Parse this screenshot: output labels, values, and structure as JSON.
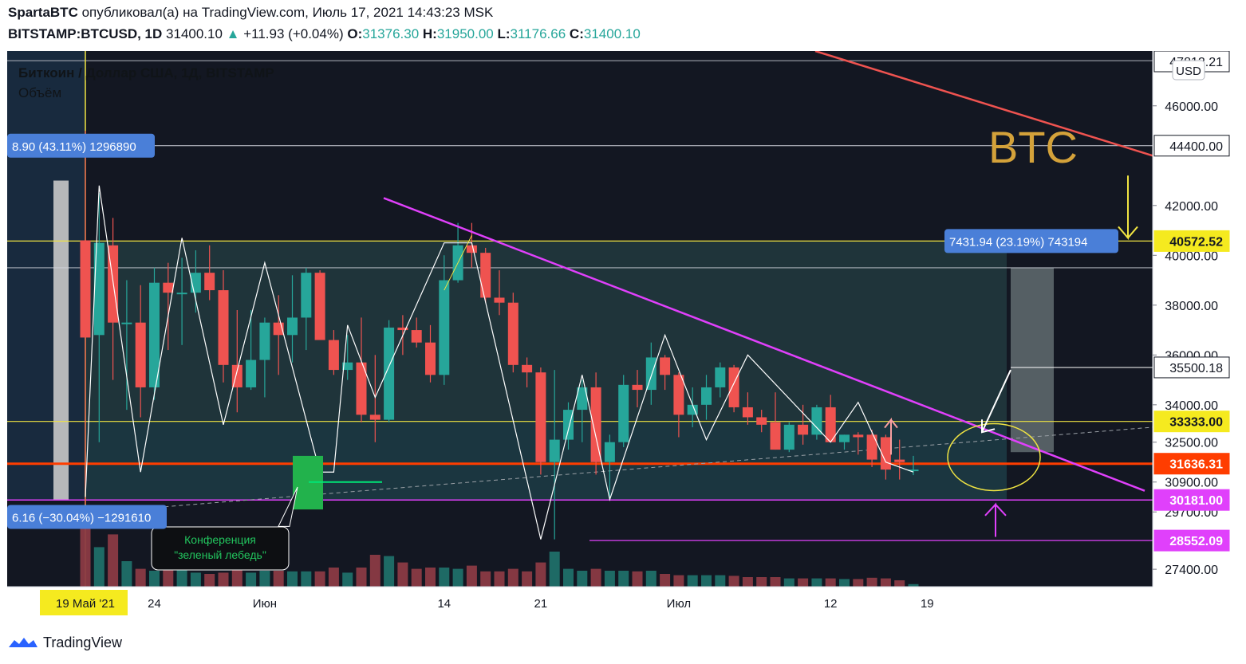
{
  "header": {
    "author": "SpartaBTC",
    "published_text": "опубликовал(а) на TradingView.com, Июль 17, 2021 14:43:23 MSK",
    "symbol": "BITSTAMP:BTCUSD, 1D",
    "last": "31400.10",
    "change": "+11.93 (+0.04%)",
    "o_label": "O:",
    "o": "31376.30",
    "h_label": "H:",
    "h": "31950.00",
    "l_label": "L:",
    "l": "31176.66",
    "c_label": "C:",
    "c": "31400.10"
  },
  "footer": {
    "brand": "TradingView"
  },
  "chart_data": {
    "type": "candlestick",
    "legend_title": "Биткоин / Доллар США, 1Д, BITSTAMP",
    "legend_volume": "Объём",
    "currency": "USD",
    "watermark": "BTC",
    "ylim": [
      26700,
      48200
    ],
    "y_ticks": [
      {
        "value": 46000,
        "label": "46000.00"
      },
      {
        "value": 42000,
        "label": "42000.00"
      },
      {
        "value": 40000,
        "label": "40000.00"
      },
      {
        "value": 38000,
        "label": "38000.00"
      },
      {
        "value": 36000,
        "label": "36000.00"
      },
      {
        "value": 34000,
        "label": "34000.00"
      },
      {
        "value": 32500,
        "label": "32500.00"
      },
      {
        "value": 30900,
        "label": "30900.00"
      },
      {
        "value": 29700,
        "label": "29700.00"
      },
      {
        "value": 27400,
        "label": "27400.00"
      }
    ],
    "x_ticks": [
      {
        "label": "19 Май '21",
        "index": 0,
        "highlight": true
      },
      {
        "label": "24",
        "index": 5
      },
      {
        "label": "Июн",
        "index": 13
      },
      {
        "label": "14",
        "index": 26
      },
      {
        "label": "21",
        "index": 33
      },
      {
        "label": "Июл",
        "index": 43
      },
      {
        "label": "12",
        "index": 54
      },
      {
        "label": "19",
        "index": 61
      }
    ],
    "candles": [
      {
        "o": 40600,
        "h": 45000,
        "l": 30000,
        "c": 36700,
        "v": 1.0
      },
      {
        "o": 36800,
        "h": 42500,
        "l": 32500,
        "c": 40500,
        "v": 0.62
      },
      {
        "o": 40400,
        "h": 41500,
        "l": 35000,
        "c": 37300,
        "v": 0.82
      },
      {
        "o": 37300,
        "h": 39000,
        "l": 33800,
        "c": 37300,
        "v": 0.4
      },
      {
        "o": 37300,
        "h": 38800,
        "l": 33500,
        "c": 34700,
        "v": 0.28
      },
      {
        "o": 34700,
        "h": 39500,
        "l": 34200,
        "c": 38900,
        "v": 0.25
      },
      {
        "o": 38900,
        "h": 39700,
        "l": 36200,
        "c": 38500,
        "v": 0.55
      },
      {
        "o": 38500,
        "h": 39900,
        "l": 36400,
        "c": 38500,
        "v": 0.28
      },
      {
        "o": 38500,
        "h": 40200,
        "l": 37700,
        "c": 39300,
        "v": 0.22
      },
      {
        "o": 39300,
        "h": 40400,
        "l": 38200,
        "c": 38600,
        "v": 0.2
      },
      {
        "o": 38600,
        "h": 39400,
        "l": 34900,
        "c": 35600,
        "v": 0.22
      },
      {
        "o": 35600,
        "h": 37800,
        "l": 33700,
        "c": 34700,
        "v": 0.28
      },
      {
        "o": 34700,
        "h": 37800,
        "l": 34600,
        "c": 35800,
        "v": 0.22
      },
      {
        "o": 35800,
        "h": 37500,
        "l": 34300,
        "c": 37300,
        "v": 0.25
      },
      {
        "o": 37300,
        "h": 38400,
        "l": 35200,
        "c": 36800,
        "v": 0.25
      },
      {
        "o": 36800,
        "h": 39200,
        "l": 35700,
        "c": 37500,
        "v": 0.24
      },
      {
        "o": 37500,
        "h": 39500,
        "l": 36200,
        "c": 39300,
        "v": 0.24
      },
      {
        "o": 39300,
        "h": 39400,
        "l": 36700,
        "c": 36600,
        "v": 0.24
      },
      {
        "o": 36600,
        "h": 37000,
        "l": 35200,
        "c": 35400,
        "v": 0.3
      },
      {
        "o": 35400,
        "h": 36800,
        "l": 35000,
        "c": 35700,
        "v": 0.22
      },
      {
        "o": 35700,
        "h": 37500,
        "l": 33300,
        "c": 33600,
        "v": 0.3
      },
      {
        "o": 33600,
        "h": 36000,
        "l": 32500,
        "c": 33400,
        "v": 0.5
      },
      {
        "o": 33400,
        "h": 37400,
        "l": 33300,
        "c": 37100,
        "v": 0.48
      },
      {
        "o": 37100,
        "h": 37600,
        "l": 36000,
        "c": 37000,
        "v": 0.38
      },
      {
        "o": 37000,
        "h": 37500,
        "l": 36300,
        "c": 36500,
        "v": 0.28
      },
      {
        "o": 36500,
        "h": 37200,
        "l": 34900,
        "c": 35200,
        "v": 0.3
      },
      {
        "o": 35200,
        "h": 40000,
        "l": 34800,
        "c": 39000,
        "v": 0.3
      },
      {
        "o": 39000,
        "h": 41300,
        "l": 38900,
        "c": 40400,
        "v": 0.28
      },
      {
        "o": 40400,
        "h": 41300,
        "l": 39500,
        "c": 40100,
        "v": 0.33
      },
      {
        "o": 40100,
        "h": 40300,
        "l": 38100,
        "c": 38300,
        "v": 0.24
      },
      {
        "o": 38300,
        "h": 39400,
        "l": 37600,
        "c": 38100,
        "v": 0.24
      },
      {
        "o": 38100,
        "h": 38500,
        "l": 35300,
        "c": 35600,
        "v": 0.28
      },
      {
        "o": 35600,
        "h": 35900,
        "l": 34700,
        "c": 35300,
        "v": 0.24
      },
      {
        "o": 35300,
        "h": 35500,
        "l": 31200,
        "c": 31700,
        "v": 0.38
      },
      {
        "o": 31700,
        "h": 35400,
        "l": 28600,
        "c": 32600,
        "v": 0.55
      },
      {
        "o": 32600,
        "h": 34100,
        "l": 32200,
        "c": 33800,
        "v": 0.28
      },
      {
        "o": 33800,
        "h": 35000,
        "l": 32500,
        "c": 34700,
        "v": 0.25
      },
      {
        "o": 34700,
        "h": 35300,
        "l": 31200,
        "c": 31700,
        "v": 0.28
      },
      {
        "o": 31700,
        "h": 32800,
        "l": 30200,
        "c": 32500,
        "v": 0.25
      },
      {
        "o": 32500,
        "h": 35200,
        "l": 32300,
        "c": 34800,
        "v": 0.25
      },
      {
        "o": 34800,
        "h": 35400,
        "l": 33900,
        "c": 34600,
        "v": 0.24
      },
      {
        "o": 34600,
        "h": 36500,
        "l": 34000,
        "c": 35900,
        "v": 0.25
      },
      {
        "o": 35900,
        "h": 36000,
        "l": 34600,
        "c": 35200,
        "v": 0.2
      },
      {
        "o": 35200,
        "h": 35300,
        "l": 32700,
        "c": 33600,
        "v": 0.18
      },
      {
        "o": 33600,
        "h": 34700,
        "l": 33100,
        "c": 34000,
        "v": 0.18
      },
      {
        "o": 34000,
        "h": 35200,
        "l": 33400,
        "c": 34700,
        "v": 0.18
      },
      {
        "o": 34700,
        "h": 35700,
        "l": 34300,
        "c": 35500,
        "v": 0.18
      },
      {
        "o": 35500,
        "h": 35600,
        "l": 33700,
        "c": 33900,
        "v": 0.17
      },
      {
        "o": 33900,
        "h": 34500,
        "l": 33200,
        "c": 33500,
        "v": 0.15
      },
      {
        "o": 33500,
        "h": 33800,
        "l": 32900,
        "c": 33200,
        "v": 0.15
      },
      {
        "o": 33300,
        "h": 34500,
        "l": 32200,
        "c": 32200,
        "v": 0.15
      },
      {
        "o": 32200,
        "h": 33300,
        "l": 32100,
        "c": 33200,
        "v": 0.13
      },
      {
        "o": 33200,
        "h": 34000,
        "l": 32400,
        "c": 32800,
        "v": 0.13
      },
      {
        "o": 32800,
        "h": 34000,
        "l": 32600,
        "c": 33900,
        "v": 0.13
      },
      {
        "o": 33900,
        "h": 34400,
        "l": 32500,
        "c": 32500,
        "v": 0.13
      },
      {
        "o": 32500,
        "h": 32800,
        "l": 32200,
        "c": 32800,
        "v": 0.12
      },
      {
        "o": 32800,
        "h": 32900,
        "l": 32000,
        "c": 32700,
        "v": 0.12
      },
      {
        "o": 32800,
        "h": 33000,
        "l": 31500,
        "c": 31800,
        "v": 0.14
      },
      {
        "o": 32700,
        "h": 32800,
        "l": 31000,
        "c": 31400,
        "v": 0.13
      },
      {
        "o": 31800,
        "h": 32600,
        "l": 31000,
        "c": 31700,
        "v": 0.1
      },
      {
        "o": 31400,
        "h": 31950,
        "l": 31177,
        "c": 31400,
        "v": 0.04
      }
    ],
    "price_labels": [
      {
        "value": 44400.0,
        "label": "44400.00",
        "style": "white"
      },
      {
        "value": 40572.52,
        "label": "40572.52",
        "style": "yellow"
      },
      {
        "value": 35500.18,
        "label": "35500.18",
        "style": "white"
      },
      {
        "value": 33333.0,
        "label": "33333.00",
        "style": "yellow"
      },
      {
        "value": 31636.31,
        "label": "31636.31",
        "style": "red"
      },
      {
        "value": 30181.0,
        "label": "30181.00",
        "style": "magenta"
      },
      {
        "value": 28552.09,
        "label": "28552.09",
        "style": "magenta"
      },
      {
        "value": 47812.21,
        "label": "47812.21",
        "style": "white"
      }
    ],
    "measure_labels": [
      {
        "label": "8.90 (43.11%) 1296890",
        "value": 44400
      },
      {
        "label": "7431.94 (23.19%) 743194",
        "value": 40572.52
      },
      {
        "label": "6.16 (−30.04%) −1291610",
        "value": 29500
      }
    ],
    "callout": {
      "line1": "Конференция",
      "line2": "\"зеленый лебедь\""
    },
    "colors": {
      "up": "#26a69a",
      "down": "#ef5350",
      "background": "#131722"
    }
  }
}
